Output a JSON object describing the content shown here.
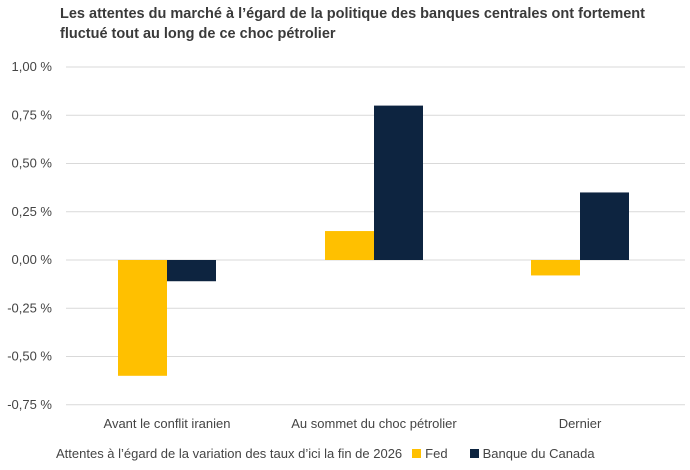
{
  "chart_data": {
    "type": "bar",
    "title": "Les attentes du marché à l’égard de la politique des banques centrales ont fortement fluctué tout au long de ce choc pétrolier",
    "categories": [
      "Avant le conflit iranien",
      "Au sommet du choc pétrolier",
      "Dernier"
    ],
    "series": [
      {
        "name": "Fed",
        "color": "#FFC000",
        "values": [
          -0.6,
          0.15,
          -0.08
        ]
      },
      {
        "name": "Banque du Canada",
        "color": "#0D2440",
        "values": [
          -0.11,
          0.8,
          0.35
        ]
      }
    ],
    "ylim": [
      -0.75,
      1.0
    ],
    "yticks": [
      1.0,
      0.75,
      0.5,
      0.25,
      0.0,
      -0.25,
      -0.5,
      -0.75
    ],
    "ytick_labels": [
      "1,00 %",
      "0,75 %",
      "0,50 %",
      "0,25 %",
      "0,00 %",
      "-0,25 %",
      "-0,50 %",
      "-0,75 %"
    ],
    "xlabel": "",
    "ylabel": "",
    "grid": true,
    "legend_title": "Attentes à l’égard de la variation des taux d’ici la fin de 2026",
    "legend_position": "bottom"
  }
}
